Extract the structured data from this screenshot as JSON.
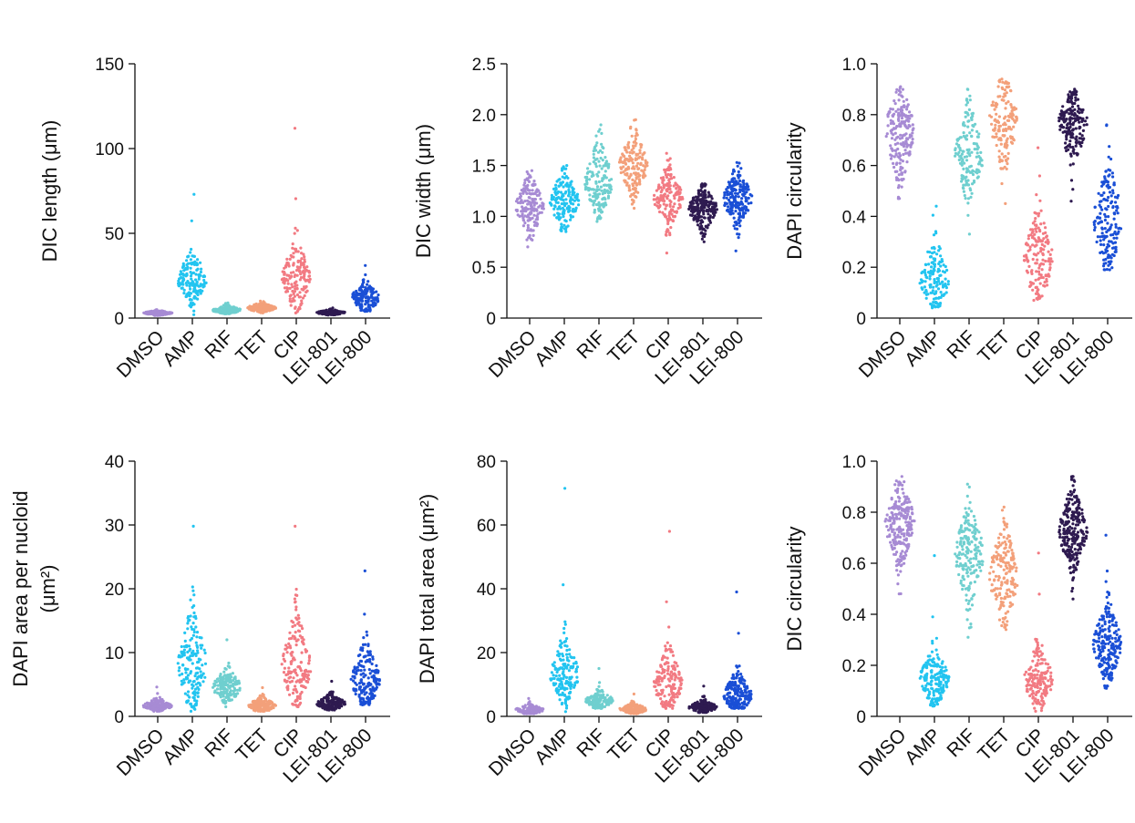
{
  "colors": {
    "DMSO": "#a78bd4",
    "AMP": "#22c4f0",
    "RIF": "#6fcfcf",
    "TET": "#f3a07a",
    "CIP": "#f27a82",
    "LEI-801": "#2e1a50",
    "LEI-800": "#1a4fd6"
  },
  "chart_data": [
    {
      "id": "dic-length",
      "type": "scatter",
      "subtype": "beeswarm",
      "ylabel": "DIC length (μm)",
      "ylim": [
        0,
        150
      ],
      "yticks": [
        0,
        50,
        100,
        150
      ],
      "ytick_labels": [
        "0",
        "50",
        "100",
        "150"
      ],
      "categories": [
        "DMSO",
        "AMP",
        "RIF",
        "TET",
        "CIP",
        "LEI-801",
        "LEI-800"
      ],
      "distributions": [
        {
          "name": "DMSO",
          "median": 3,
          "q1": 2.5,
          "q3": 3.5,
          "min": 1.5,
          "max": 5,
          "n": 150
        },
        {
          "name": "AMP",
          "median": 21,
          "q1": 17,
          "q3": 28,
          "min": 2,
          "max": 73,
          "n": 160
        },
        {
          "name": "RIF",
          "median": 4.5,
          "q1": 3.8,
          "q3": 5.5,
          "min": 2.5,
          "max": 9,
          "n": 150
        },
        {
          "name": "TET",
          "median": 6,
          "q1": 5,
          "q3": 7,
          "min": 3,
          "max": 10,
          "n": 150
        },
        {
          "name": "CIP",
          "median": 24,
          "q1": 17,
          "q3": 31,
          "min": 3,
          "max": 112,
          "n": 160
        },
        {
          "name": "LEI-801",
          "median": 3.2,
          "q1": 2.7,
          "q3": 3.8,
          "min": 1.8,
          "max": 6,
          "n": 150
        },
        {
          "name": "LEI-800",
          "median": 12,
          "q1": 9,
          "q3": 15,
          "min": 4,
          "max": 31,
          "n": 160
        }
      ]
    },
    {
      "id": "dic-width",
      "type": "scatter",
      "subtype": "beeswarm",
      "ylabel": "DIC width (μm)",
      "ylim": [
        0,
        2.5
      ],
      "yticks": [
        0,
        0.5,
        1.0,
        1.5,
        2.0,
        2.5
      ],
      "ytick_labels": [
        "0",
        "0.5",
        "1.0",
        "1.5",
        "2.0",
        "2.5"
      ],
      "categories": [
        "DMSO",
        "AMP",
        "RIF",
        "TET",
        "CIP",
        "LEI-801",
        "LEI-800"
      ],
      "distributions": [
        {
          "name": "DMSO",
          "median": 1.1,
          "q1": 1.0,
          "q3": 1.2,
          "min": 0.7,
          "max": 1.45,
          "n": 170
        },
        {
          "name": "AMP",
          "median": 1.15,
          "q1": 1.05,
          "q3": 1.25,
          "min": 0.85,
          "max": 1.5,
          "n": 170
        },
        {
          "name": "RIF",
          "median": 1.3,
          "q1": 1.2,
          "q3": 1.45,
          "min": 0.95,
          "max": 1.9,
          "n": 170
        },
        {
          "name": "TET",
          "median": 1.5,
          "q1": 1.4,
          "q3": 1.62,
          "min": 1.08,
          "max": 1.95,
          "n": 170
        },
        {
          "name": "CIP",
          "median": 1.18,
          "q1": 1.08,
          "q3": 1.28,
          "min": 0.64,
          "max": 1.62,
          "n": 170
        },
        {
          "name": "LEI-801",
          "median": 1.08,
          "q1": 1.0,
          "q3": 1.15,
          "min": 0.75,
          "max": 1.32,
          "n": 220
        },
        {
          "name": "LEI-800",
          "median": 1.18,
          "q1": 1.08,
          "q3": 1.28,
          "min": 0.66,
          "max": 1.53,
          "n": 200
        }
      ]
    },
    {
      "id": "dapi-circularity",
      "type": "scatter",
      "subtype": "beeswarm",
      "ylabel": "DAPI circularity",
      "ylim": [
        0,
        1.0
      ],
      "yticks": [
        0,
        0.2,
        0.4,
        0.6,
        0.8,
        1.0
      ],
      "ytick_labels": [
        "0",
        "0.2",
        "0.4",
        "0.6",
        "0.8",
        "1.0"
      ],
      "categories": [
        "DMSO",
        "AMP",
        "RIF",
        "TET",
        "CIP",
        "LEI-801",
        "LEI-800"
      ],
      "distributions": [
        {
          "name": "DMSO",
          "median": 0.74,
          "q1": 0.67,
          "q3": 0.8,
          "min": 0.47,
          "max": 0.91,
          "n": 200
        },
        {
          "name": "AMP",
          "median": 0.14,
          "q1": 0.1,
          "q3": 0.2,
          "min": 0.04,
          "max": 0.44,
          "n": 150
        },
        {
          "name": "RIF",
          "median": 0.64,
          "q1": 0.58,
          "q3": 0.7,
          "min": 0.33,
          "max": 0.9,
          "n": 160
        },
        {
          "name": "TET",
          "median": 0.78,
          "q1": 0.72,
          "q3": 0.84,
          "min": 0.45,
          "max": 0.94,
          "n": 150
        },
        {
          "name": "CIP",
          "median": 0.24,
          "q1": 0.17,
          "q3": 0.3,
          "min": 0.07,
          "max": 0.67,
          "n": 160
        },
        {
          "name": "LEI-801",
          "median": 0.78,
          "q1": 0.72,
          "q3": 0.82,
          "min": 0.46,
          "max": 0.9,
          "n": 200
        },
        {
          "name": "LEI-800",
          "median": 0.38,
          "q1": 0.31,
          "q3": 0.46,
          "min": 0.19,
          "max": 0.76,
          "n": 170
        }
      ]
    },
    {
      "id": "dapi-area-per-nucloid",
      "type": "scatter",
      "subtype": "beeswarm",
      "ylabel_lines": [
        "DAPI area per nucloid",
        "(μm²)"
      ],
      "ylim": [
        0,
        40
      ],
      "yticks": [
        0,
        10,
        20,
        30,
        40
      ],
      "ytick_labels": [
        "0",
        "10",
        "20",
        "30",
        "40"
      ],
      "categories": [
        "DMSO",
        "AMP",
        "RIF",
        "TET",
        "CIP",
        "LEI-801",
        "LEI-800"
      ],
      "distributions": [
        {
          "name": "DMSO",
          "median": 1.6,
          "q1": 1.3,
          "q3": 2.0,
          "min": 0.8,
          "max": 4.6,
          "n": 160
        },
        {
          "name": "AMP",
          "median": 8,
          "q1": 5.5,
          "q3": 11,
          "min": 0.8,
          "max": 29.8,
          "n": 170
        },
        {
          "name": "RIF",
          "median": 4.5,
          "q1": 3.6,
          "q3": 5.5,
          "min": 1.5,
          "max": 12,
          "n": 160
        },
        {
          "name": "TET",
          "median": 1.7,
          "q1": 1.3,
          "q3": 2.1,
          "min": 0.8,
          "max": 4.5,
          "n": 160
        },
        {
          "name": "CIP",
          "median": 7.5,
          "q1": 5.5,
          "q3": 10.5,
          "min": 1.5,
          "max": 29.8,
          "n": 170
        },
        {
          "name": "LEI-801",
          "median": 2.0,
          "q1": 1.6,
          "q3": 2.5,
          "min": 1.0,
          "max": 5.5,
          "n": 160
        },
        {
          "name": "LEI-800",
          "median": 5.5,
          "q1": 4.0,
          "q3": 7.5,
          "min": 1.8,
          "max": 22.8,
          "n": 180
        }
      ]
    },
    {
      "id": "dapi-total-area",
      "type": "scatter",
      "subtype": "beeswarm",
      "ylabel": "DAPI total area (μm²)",
      "ylim": [
        0,
        80
      ],
      "yticks": [
        0,
        20,
        40,
        60,
        80
      ],
      "ytick_labels": [
        "0",
        "20",
        "40",
        "60",
        "80"
      ],
      "categories": [
        "DMSO",
        "AMP",
        "RIF",
        "TET",
        "CIP",
        "LEI-801",
        "LEI-800"
      ],
      "distributions": [
        {
          "name": "DMSO",
          "median": 2.0,
          "q1": 1.5,
          "q3": 2.6,
          "min": 0.8,
          "max": 5.6,
          "n": 140
        },
        {
          "name": "AMP",
          "median": 13,
          "q1": 10,
          "q3": 17,
          "min": 1.5,
          "max": 71.5,
          "n": 170
        },
        {
          "name": "RIF",
          "median": 5,
          "q1": 4,
          "q3": 6,
          "min": 2.5,
          "max": 15,
          "n": 170
        },
        {
          "name": "TET",
          "median": 2.2,
          "q1": 1.7,
          "q3": 2.8,
          "min": 0.8,
          "max": 7,
          "n": 150
        },
        {
          "name": "CIP",
          "median": 10,
          "q1": 7,
          "q3": 14,
          "min": 2.5,
          "max": 58,
          "n": 170
        },
        {
          "name": "LEI-801",
          "median": 2.8,
          "q1": 2.2,
          "q3": 3.6,
          "min": 1.2,
          "max": 9.5,
          "n": 160
        },
        {
          "name": "LEI-800",
          "median": 6.5,
          "q1": 4.5,
          "q3": 9,
          "min": 2.5,
          "max": 39,
          "n": 200
        }
      ]
    },
    {
      "id": "dic-circularity",
      "type": "scatter",
      "subtype": "beeswarm",
      "ylabel": "DIC circularity",
      "ylim": [
        0,
        1.0
      ],
      "yticks": [
        0,
        0.2,
        0.4,
        0.6,
        0.8,
        1.0
      ],
      "ytick_labels": [
        "0",
        "0.2",
        "0.4",
        "0.6",
        "0.8",
        "1.0"
      ],
      "categories": [
        "DMSO",
        "AMP",
        "RIF",
        "TET",
        "CIP",
        "LEI-801",
        "LEI-800"
      ],
      "distributions": [
        {
          "name": "DMSO",
          "median": 0.76,
          "q1": 0.7,
          "q3": 0.82,
          "min": 0.48,
          "max": 0.94,
          "n": 230
        },
        {
          "name": "AMP",
          "median": 0.15,
          "q1": 0.11,
          "q3": 0.19,
          "min": 0.04,
          "max": 0.63,
          "n": 180
        },
        {
          "name": "RIF",
          "median": 0.64,
          "q1": 0.57,
          "q3": 0.7,
          "min": 0.31,
          "max": 0.91,
          "n": 190
        },
        {
          "name": "TET",
          "median": 0.55,
          "q1": 0.48,
          "q3": 0.62,
          "min": 0.34,
          "max": 0.82,
          "n": 180
        },
        {
          "name": "CIP",
          "median": 0.14,
          "q1": 0.1,
          "q3": 0.19,
          "min": 0.02,
          "max": 0.64,
          "n": 170
        },
        {
          "name": "LEI-801",
          "median": 0.72,
          "q1": 0.67,
          "q3": 0.78,
          "min": 0.46,
          "max": 0.94,
          "n": 260
        },
        {
          "name": "LEI-800",
          "median": 0.28,
          "q1": 0.23,
          "q3": 0.34,
          "min": 0.11,
          "max": 0.71,
          "n": 220
        }
      ]
    }
  ]
}
